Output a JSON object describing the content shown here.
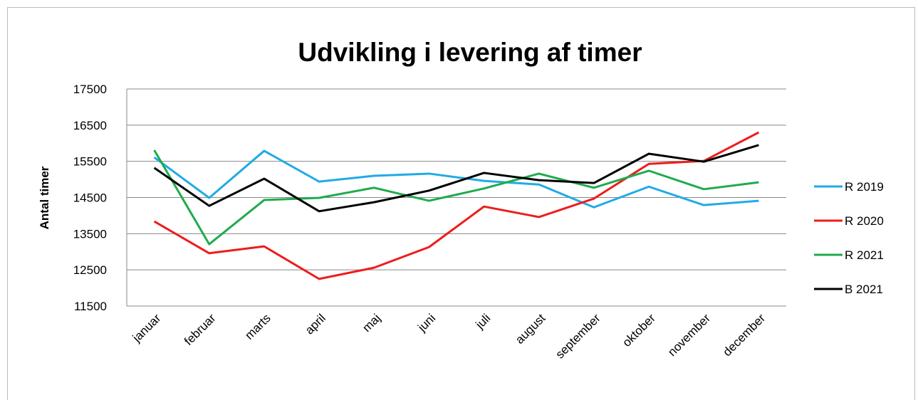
{
  "chart_data": {
    "type": "line",
    "title": "Udvikling i levering af timer",
    "y_label": "Antal timer",
    "categories": [
      "januar",
      "februar",
      "marts",
      "april",
      "maj",
      "juni",
      "juli",
      "august",
      "september",
      "oktober",
      "november",
      "december"
    ],
    "series": [
      {
        "name": "R 2019",
        "color": "#21aae6",
        "values": [
          15610,
          14490,
          15790,
          14940,
          15100,
          15160,
          14960,
          14860,
          14230,
          14800,
          14290,
          14410
        ]
      },
      {
        "name": "R 2020",
        "color": "#ee1c1c",
        "values": [
          13840,
          12960,
          13150,
          12250,
          12560,
          13130,
          14250,
          13960,
          14470,
          15430,
          15510,
          16300
        ]
      },
      {
        "name": "R 2021",
        "color": "#1fab4e",
        "values": [
          15810,
          13210,
          14430,
          14490,
          14770,
          14410,
          14750,
          15160,
          14770,
          15240,
          14730,
          14920
        ]
      },
      {
        "name": "B 2021",
        "color": "#000000",
        "values": [
          15320,
          14270,
          15020,
          14120,
          14370,
          14690,
          15180,
          14980,
          14900,
          15710,
          15490,
          15950
        ]
      }
    ],
    "ylim": [
      11500,
      17500
    ],
    "yticks": [
      11500,
      12500,
      13500,
      14500,
      15500,
      16500,
      17500
    ],
    "grid": true,
    "legend": "right"
  }
}
